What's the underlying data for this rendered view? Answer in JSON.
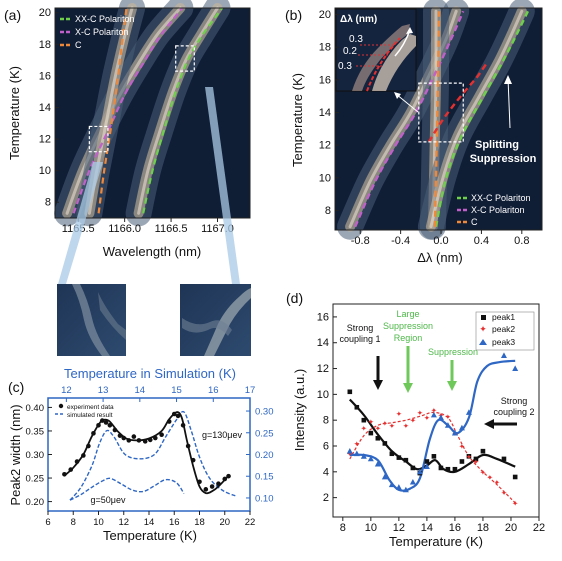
{
  "chart_data": [
    {
      "id": "a",
      "panel_label": "(a)",
      "type": "heatmap",
      "xlabel": "Wavelength (nm)",
      "ylabel": "Temperature (K)",
      "xlim": [
        1165.25,
        1167.35
      ],
      "ylim": [
        7.0,
        20.3
      ],
      "xticks": [
        "1165.5",
        "1166.0",
        "1166.5",
        "1167.0"
      ],
      "xtick_values": [
        1165.5,
        1166.0,
        1166.5,
        1167.0
      ],
      "yticks": [
        "8",
        "10",
        "12",
        "14",
        "16",
        "18",
        "20"
      ],
      "ytick_values": [
        8,
        10,
        12,
        14,
        16,
        18,
        20
      ],
      "legend": {
        "position": "top-left",
        "entries": [
          "XX-C Polariton",
          "X-C Polariton",
          "C"
        ]
      },
      "series": [
        {
          "color": "#6fd04a",
          "x": [
            1166.2,
            1166.3,
            1166.42,
            1166.55,
            1166.68,
            1166.84,
            1167.05
          ],
          "y": [
            7.3,
            10.0,
            12.5,
            15.0,
            17.0,
            18.6,
            20.3
          ]
        },
        {
          "color": "#c060c8",
          "x": [
            1165.45,
            1165.62,
            1165.82,
            1166.0,
            1166.2,
            1166.38,
            1166.62
          ],
          "y": [
            7.3,
            10.0,
            12.5,
            14.8,
            16.8,
            18.5,
            20.3
          ]
        },
        {
          "color": "#f0883a",
          "x": [
            1165.72,
            1165.78,
            1165.86,
            1165.93,
            1165.98,
            1166.02
          ],
          "y": [
            7.3,
            10.0,
            13.0,
            16.0,
            18.5,
            20.3
          ]
        }
      ],
      "ridges": [
        {
          "x": [
            1165.38,
            1165.55,
            1165.75,
            1165.95,
            1166.15,
            1166.35,
            1166.6
          ],
          "y": [
            7.3,
            10.0,
            12.5,
            14.8,
            16.8,
            18.6,
            20.3
          ]
        },
        {
          "x": [
            1165.62,
            1165.7,
            1165.8,
            1165.9,
            1166.0,
            1166.08
          ],
          "y": [
            7.3,
            10.0,
            13.0,
            16.0,
            18.5,
            20.3
          ]
        },
        {
          "x": [
            1166.15,
            1166.25,
            1166.38,
            1166.52,
            1166.66,
            1166.82,
            1167.0
          ],
          "y": [
            7.3,
            10.0,
            12.5,
            15.0,
            17.0,
            18.6,
            20.3
          ]
        }
      ],
      "highlight_boxes": [
        {
          "x": [
            1165.62,
            1165.82
          ],
          "y": [
            11.2,
            12.8
          ]
        },
        {
          "x": [
            1166.55,
            1166.75
          ],
          "y": [
            16.3,
            17.9
          ]
        }
      ]
    },
    {
      "id": "b",
      "panel_label": "(b)",
      "type": "heatmap",
      "xlabel": "Δλ (nm)",
      "ylabel": "Temperature (K)",
      "xlim": [
        -1.05,
        1.0
      ],
      "ylim": [
        6.8,
        20.4
      ],
      "xticks": [
        "-0.8",
        "-0.4",
        "0.0",
        "0.4",
        "0.8"
      ],
      "xtick_values": [
        -0.8,
        -0.4,
        0.0,
        0.4,
        0.8
      ],
      "yticks": [
        "8",
        "10",
        "12",
        "14",
        "16",
        "18",
        "20"
      ],
      "ytick_values": [
        8,
        10,
        12,
        14,
        16,
        18,
        20
      ],
      "legend": {
        "position": "bottom-right",
        "entries": [
          "XX-C Polariton",
          "X-C Polariton",
          "C"
        ]
      },
      "series": [
        {
          "color": "#6fd04a",
          "x": [
            -0.05,
            0.05,
            0.2,
            0.42,
            0.6,
            0.75,
            0.86
          ],
          "y": [
            7.0,
            10.0,
            12.5,
            15.0,
            17.0,
            18.8,
            20.2
          ]
        },
        {
          "color": "#c060c8",
          "x": [
            -0.85,
            -0.65,
            -0.45,
            -0.25,
            -0.05,
            0.1,
            0.22
          ],
          "y": [
            7.0,
            9.8,
            12.0,
            14.0,
            16.5,
            18.5,
            20.2
          ]
        },
        {
          "color": "#f0883a",
          "x": [
            -0.06,
            -0.05,
            -0.04,
            -0.03,
            -0.02
          ],
          "y": [
            7.0,
            10.0,
            13.0,
            16.0,
            20.2
          ]
        },
        {
          "color": "#e53030",
          "x": [
            -0.12,
            0.0,
            0.12,
            0.25,
            0.36,
            0.45
          ],
          "y": [
            12.2,
            13.4,
            14.4,
            15.4,
            16.2,
            17.0
          ]
        }
      ],
      "ridges": [
        {
          "x": [
            -0.9,
            -0.7,
            -0.5,
            -0.3,
            -0.1,
            0.05,
            0.15
          ],
          "y": [
            7.0,
            9.8,
            12.0,
            14.0,
            16.5,
            18.5,
            20.2
          ]
        },
        {
          "x": [
            -0.08,
            -0.07,
            -0.06,
            -0.05,
            -0.05
          ],
          "y": [
            7.0,
            10.0,
            13.0,
            16.0,
            20.2
          ]
        },
        {
          "x": [
            -0.1,
            0.02,
            0.16,
            0.38,
            0.56,
            0.7,
            0.8
          ],
          "y": [
            7.0,
            10.0,
            12.5,
            15.0,
            17.0,
            18.8,
            20.2
          ]
        }
      ],
      "highlight_boxes": [
        {
          "x": [
            -0.22,
            0.22
          ],
          "y": [
            12.2,
            15.8
          ]
        }
      ],
      "annotations": [
        "Splitting",
        "Suppression"
      ],
      "inset": {
        "title": "Δλ (nm)",
        "labels": [
          "0.3",
          "0.2",
          "0.3"
        ]
      }
    },
    {
      "id": "c",
      "panel_label": "(c)",
      "type": "line",
      "xlabel": "Temperature (K)",
      "ylabel": "Peak2 width (nm)",
      "x2label": "Temperature in Simulation (K)",
      "xlim": [
        6,
        22
      ],
      "ylim": [
        0.18,
        0.42
      ],
      "x2lim": [
        11.5,
        17
      ],
      "y2lim": [
        0.07,
        0.33
      ],
      "xticks": [
        "6",
        "8",
        "10",
        "12",
        "14",
        "16",
        "18",
        "20",
        "22"
      ],
      "xtick_values": [
        6,
        8,
        10,
        12,
        14,
        16,
        18,
        20,
        22
      ],
      "yticks": [
        "0.20",
        "0.25",
        "0.30",
        "0.35",
        "0.40"
      ],
      "ytick_values": [
        0.2,
        0.25,
        0.3,
        0.35,
        0.4
      ],
      "x2ticks": [
        "12",
        "13",
        "14",
        "15",
        "16",
        "17"
      ],
      "x2tick_values": [
        12,
        13,
        14,
        15,
        16,
        17
      ],
      "y2ticks": [
        "0.10",
        "0.15",
        "0.20",
        "0.25",
        "0.30"
      ],
      "y2tick_values": [
        0.1,
        0.15,
        0.2,
        0.25,
        0.3
      ],
      "legend": {
        "position": "top-left",
        "entries": [
          "experiment data",
          "simulated result"
        ]
      },
      "annotations": [
        "g=130μev",
        "g=50μev"
      ],
      "experiment": {
        "x": [
          7.3,
          7.8,
          8.3,
          8.8,
          9.2,
          9.6,
          10.0,
          10.3,
          10.6,
          10.9,
          11.3,
          11.7,
          12.0,
          12.4,
          12.8,
          13.2,
          13.7,
          14.1,
          14.5,
          15.0,
          15.6,
          16.0,
          16.3,
          16.7,
          17.1,
          17.5,
          18.0,
          18.5,
          19.0,
          19.5,
          20.0,
          20.3
        ],
        "y": [
          0.258,
          0.268,
          0.285,
          0.298,
          0.318,
          0.345,
          0.362,
          0.372,
          0.368,
          0.362,
          0.352,
          0.34,
          0.335,
          0.33,
          0.338,
          0.33,
          0.328,
          0.331,
          0.335,
          0.342,
          0.37,
          0.386,
          0.382,
          0.362,
          0.318,
          0.288,
          0.242,
          0.226,
          0.232,
          0.238,
          0.248,
          0.254
        ]
      },
      "experiment_fit": {
        "x": [
          7.3,
          8.0,
          8.8,
          9.5,
          10.2,
          10.8,
          11.5,
          12.2,
          13.0,
          14.0,
          15.0,
          15.6,
          16.2,
          16.6,
          17.0,
          17.5,
          18.0,
          18.5,
          19.0,
          19.5,
          20.3
        ],
        "y": [
          0.255,
          0.272,
          0.3,
          0.34,
          0.37,
          0.372,
          0.35,
          0.334,
          0.33,
          0.334,
          0.35,
          0.375,
          0.39,
          0.378,
          0.33,
          0.275,
          0.232,
          0.218,
          0.222,
          0.232,
          0.255
        ]
      },
      "simulation_g130": {
        "x2": [
          12.1,
          12.4,
          12.7,
          12.9,
          13.1,
          13.3,
          13.6,
          14.0,
          14.4,
          14.7,
          15.0,
          15.2,
          15.4,
          15.6,
          15.8,
          16.0,
          16.3,
          16.6
        ],
        "y2": [
          0.095,
          0.125,
          0.175,
          0.225,
          0.255,
          0.24,
          0.2,
          0.19,
          0.2,
          0.24,
          0.28,
          0.298,
          0.255,
          0.2,
          0.16,
          0.135,
          0.115,
          0.105
        ]
      },
      "simulation_g50": {
        "x2": [
          12.1,
          12.4,
          12.7,
          13.0,
          13.2,
          13.5,
          13.8,
          14.1,
          14.4,
          14.7,
          15.0,
          15.2
        ],
        "y2": [
          0.095,
          0.108,
          0.125,
          0.14,
          0.145,
          0.132,
          0.118,
          0.115,
          0.128,
          0.142,
          0.135,
          0.11
        ]
      }
    },
    {
      "id": "d",
      "panel_label": "(d)",
      "type": "scatter",
      "xlabel": "Temperature (K)",
      "ylabel": "Intensity (a.u.)",
      "xlim": [
        7.3,
        22
      ],
      "ylim": [
        0.5,
        17
      ],
      "xticks": [
        "8",
        "10",
        "12",
        "14",
        "16",
        "18",
        "20",
        "22"
      ],
      "xtick_values": [
        8,
        10,
        12,
        14,
        16,
        18,
        20,
        22
      ],
      "yticks": [
        "2",
        "4",
        "6",
        "8",
        "10",
        "12",
        "14",
        "16"
      ],
      "ytick_values": [
        2,
        4,
        6,
        8,
        10,
        12,
        14,
        16
      ],
      "legend": {
        "position": "top-right",
        "entries": [
          "peak1",
          "peak2",
          "peak3"
        ]
      },
      "series": [
        {
          "name": "peak1",
          "color": "#111111",
          "x": [
            8.5,
            9.0,
            9.5,
            10.0,
            10.5,
            11.0,
            11.5,
            12.0,
            12.5,
            13.0,
            13.5,
            14.0,
            14.5,
            15.0,
            15.5,
            16.0,
            16.5,
            17.0,
            17.5,
            18.0,
            19.5,
            20.3
          ],
          "y": [
            10.2,
            9.0,
            8.0,
            7.0,
            6.6,
            6.2,
            5.4,
            5.1,
            4.9,
            4.3,
            3.9,
            4.8,
            5.2,
            4.3,
            4.2,
            4.2,
            4.8,
            5.2,
            5.0,
            5.6,
            5.0,
            3.6
          ]
        },
        {
          "name": "peak2",
          "color": "#e53030",
          "x": [
            8.5,
            9.0,
            9.5,
            10.0,
            10.5,
            11.0,
            11.5,
            12.0,
            12.5,
            13.0,
            13.5,
            14.0,
            14.5,
            15.0,
            15.5,
            16.0,
            16.5,
            17.0,
            17.5,
            18.0,
            18.5,
            19.0,
            19.5,
            20.3
          ],
          "y": [
            5.4,
            6.2,
            7.4,
            7.9,
            7.4,
            7.8,
            7.6,
            8.5,
            7.6,
            8.0,
            8.6,
            8.2,
            8.8,
            8.4,
            8.3,
            7.0,
            6.0,
            5.2,
            4.8,
            4.0,
            3.6,
            3.2,
            2.4,
            1.6
          ]
        },
        {
          "name": "peak3",
          "color": "#2f67c4",
          "x": [
            8.5,
            9.0,
            9.5,
            10.0,
            10.5,
            11.0,
            11.5,
            12.0,
            12.5,
            13.0,
            13.5,
            14.0,
            14.5,
            15.0,
            15.5,
            16.0,
            16.5,
            17.0,
            19.5,
            20.3
          ],
          "y": [
            5.6,
            5.4,
            5.2,
            5.0,
            4.6,
            3.6,
            3.0,
            2.8,
            2.6,
            3.2,
            4.0,
            4.4,
            8.4,
            8.2,
            7.6,
            7.0,
            7.4,
            8.6,
            13.0,
            12.0
          ]
        }
      ],
      "fits": [
        {
          "color": "#111111",
          "x": [
            8.5,
            9.5,
            10.5,
            11.5,
            12.5,
            13.3,
            14.0,
            14.6,
            15.2,
            16.0,
            17.0,
            18.0,
            19.0,
            20.3
          ],
          "y": [
            9.6,
            8.4,
            6.9,
            5.6,
            4.8,
            4.2,
            4.5,
            4.9,
            4.2,
            4.0,
            4.6,
            5.3,
            5.0,
            4.4
          ]
        },
        {
          "color": "#e53030",
          "x": [
            8.5,
            9.5,
            10.5,
            11.5,
            12.5,
            13.5,
            14.5,
            15.5,
            16.2,
            17.0,
            18.0,
            19.0,
            20.3
          ],
          "y": [
            5.0,
            6.8,
            7.6,
            7.8,
            8.0,
            8.3,
            8.6,
            8.2,
            6.8,
            5.2,
            4.0,
            3.0,
            1.6
          ]
        },
        {
          "color": "#2f67c4",
          "x": [
            8.5,
            9.5,
            10.5,
            11.3,
            12.0,
            12.8,
            13.5,
            14.2,
            14.8,
            15.5,
            16.2,
            17.0,
            17.6,
            18.3,
            19.2,
            20.3
          ],
          "y": [
            5.3,
            5.3,
            4.9,
            3.4,
            2.6,
            2.7,
            3.5,
            6.5,
            8.0,
            7.6,
            7.0,
            8.2,
            11.0,
            12.2,
            12.5,
            12.6
          ]
        }
      ],
      "annotations": [
        "Strong",
        "coupling 1",
        "Large",
        "Suppression",
        "Region",
        "Suppression",
        "Strong",
        "coupling 2"
      ]
    }
  ]
}
